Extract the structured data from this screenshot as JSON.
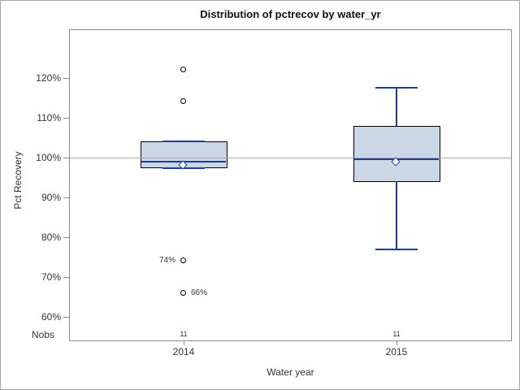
{
  "chart_data": {
    "type": "boxplot",
    "title": "Distribution of pctrecov by water_yr",
    "xlabel": "Water year",
    "ylabel": "Pct Recovery",
    "nobs_row_label": "Nobs",
    "y_ticks": [
      120,
      110,
      100,
      90,
      80,
      70,
      60
    ],
    "y_tick_suffix": "%",
    "y_axis_range_shown": [
      54,
      132
    ],
    "reference_line": 100,
    "grid": "off",
    "legend": "none",
    "categories": [
      "2014",
      "2015"
    ],
    "groups": [
      {
        "category": "2014",
        "nobs": "11",
        "q1": 97.3,
        "median": 99,
        "q3": 104,
        "mean": 98,
        "whisker_low": 97.3,
        "whisker_high": 104,
        "outliers": [
          {
            "value": 122
          },
          {
            "value": 114
          },
          {
            "value": 74,
            "label": "74%",
            "label_side": "left"
          },
          {
            "value": 66,
            "label": "66%",
            "label_side": "right"
          }
        ]
      },
      {
        "category": "2015",
        "nobs": "11",
        "q1": 94,
        "median": 99.5,
        "q3": 108,
        "mean": 98.8,
        "whisker_low": 77,
        "whisker_high": 117.5,
        "outliers": []
      }
    ],
    "colors": {
      "box_fill": "#ccd7e6",
      "box_border": "#000000",
      "line_blue": "#1b3d9e",
      "reference_line": "#a8a8a8",
      "axis_gray": "#8c8c8c",
      "outlier_stroke": "#000000",
      "text": "#333333"
    }
  }
}
